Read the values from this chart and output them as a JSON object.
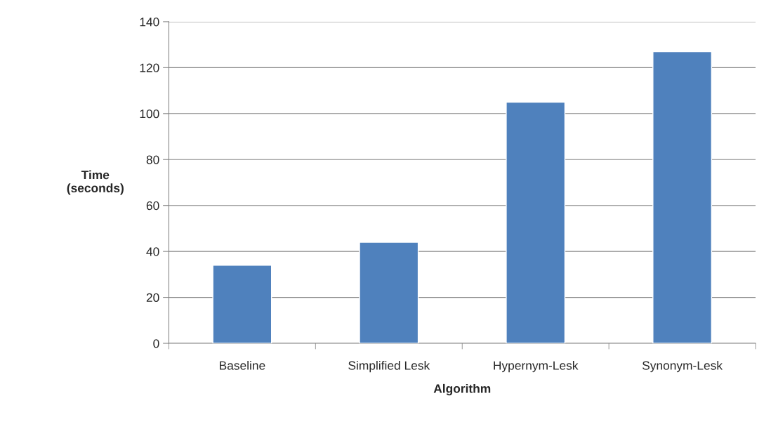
{
  "chart_data": {
    "type": "bar",
    "xlabel": "Algorithm",
    "ylabel": "Time\n(seconds)",
    "categories": [
      "Baseline",
      "Simplified Lesk",
      "Hypernym-Lesk",
      "Synonym-Lesk"
    ],
    "values": [
      34,
      44,
      105,
      127
    ],
    "color": "#4f81bd",
    "ylim": [
      0,
      140
    ],
    "yticks": [
      0,
      20,
      40,
      60,
      80,
      100,
      120,
      140
    ],
    "grid": "y",
    "legend": false
  }
}
